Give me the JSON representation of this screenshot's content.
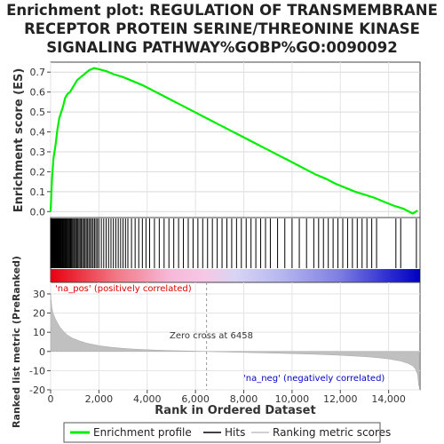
{
  "title_lines": [
    "Enrichment plot: REGULATION OF TRANSMEMBRANE",
    "RECEPTOR PROTEIN SERINE/THREONINE KINASE",
    "SIGNALING PATHWAY%GOBP%GO:0090092"
  ],
  "chart_data": {
    "type": "line",
    "title": "Enrichment plot: REGULATION OF TRANSMEMBRANE RECEPTOR PROTEIN SERINE/THREONINE KINASE SIGNALING PATHWAY%GOBP%GO:0090092",
    "xlabel": "Rank in Ordered Dataset",
    "xlim": [
      0,
      15300
    ],
    "x_ticks": [
      0,
      2000,
      4000,
      6000,
      8000,
      10000,
      12000,
      14000
    ],
    "x_tick_labels": [
      "0",
      "2,000",
      "4,000",
      "6,000",
      "8,000",
      "10,000",
      "12,000",
      "14,000"
    ],
    "top_panel": {
      "ylabel": "Enrichment score (ES)",
      "ylim": [
        -0.03,
        0.75
      ],
      "y_ticks": [
        0.0,
        0.1,
        0.2,
        0.3,
        0.4,
        0.5,
        0.6,
        0.7
      ],
      "y_tick_labels": [
        "0.0",
        "0.1",
        "0.2",
        "0.3",
        "0.4",
        "0.5",
        "0.6",
        "0.7"
      ],
      "grid": true,
      "series": [
        {
          "name": "Enrichment profile",
          "color": "#00ee00",
          "x": [
            0,
            60,
            120,
            200,
            280,
            360,
            440,
            520,
            600,
            700,
            800,
            900,
            1000,
            1100,
            1200,
            1300,
            1400,
            1500,
            1600,
            1700,
            1800,
            2000,
            2300,
            2600,
            3000,
            3400,
            3800,
            4200,
            4600,
            5000,
            5400,
            5800,
            6200,
            6600,
            7000,
            7400,
            7800,
            8200,
            8600,
            9000,
            9400,
            9800,
            10200,
            10600,
            11000,
            11400,
            11800,
            12200,
            12600,
            13000,
            13400,
            13800,
            14200,
            14600,
            15000,
            15200
          ],
          "y": [
            0.0,
            0.17,
            0.27,
            0.33,
            0.41,
            0.47,
            0.5,
            0.53,
            0.57,
            0.59,
            0.6,
            0.62,
            0.64,
            0.66,
            0.67,
            0.68,
            0.69,
            0.7,
            0.71,
            0.715,
            0.72,
            0.715,
            0.705,
            0.69,
            0.675,
            0.655,
            0.635,
            0.61,
            0.585,
            0.56,
            0.535,
            0.51,
            0.485,
            0.46,
            0.435,
            0.41,
            0.385,
            0.36,
            0.335,
            0.31,
            0.285,
            0.26,
            0.235,
            0.21,
            0.185,
            0.165,
            0.14,
            0.12,
            0.1,
            0.085,
            0.07,
            0.05,
            0.03,
            0.015,
            -0.01,
            0.005
          ]
        }
      ]
    },
    "hits_panel": {
      "hit_ranks": [
        5,
        12,
        20,
        28,
        35,
        44,
        52,
        61,
        70,
        80,
        90,
        101,
        113,
        125,
        138,
        152,
        167,
        183,
        200,
        218,
        237,
        257,
        278,
        300,
        323,
        347,
        372,
        398,
        425,
        453,
        482,
        512,
        543,
        575,
        608,
        642,
        677,
        713,
        750,
        788,
        827,
        867,
        908,
        950,
        993,
        1037,
        1082,
        1128,
        1175,
        1223,
        1272,
        1322,
        1373,
        1425,
        1478,
        1532,
        1587,
        1643,
        1700,
        1758,
        1817,
        1877,
        1938,
        2000,
        2100,
        2200,
        2300,
        2400,
        2500,
        2600,
        2700,
        2800,
        2900,
        3000,
        3100,
        3200,
        3350,
        3500,
        3650,
        3800,
        3950,
        4100,
        4300,
        4500,
        4700,
        4900,
        5100,
        5300,
        5500,
        5700,
        5900,
        6100,
        6300,
        6500,
        6700,
        6900,
        7100,
        7300,
        7500,
        7700,
        7900,
        8100,
        8300,
        8500,
        8700,
        8900,
        9100,
        9400,
        9700,
        10000,
        10300,
        10600,
        10900,
        11100,
        11300,
        11500,
        11700,
        11900,
        12100,
        12300,
        12500,
        12700,
        12900,
        13100,
        13300,
        13500,
        14300,
        14500,
        15150
      ]
    },
    "bottom_panel": {
      "ylabel": "Ranked list metric (PreRanked)",
      "ylim": [
        -20,
        36
      ],
      "y_ticks": [
        -20,
        -10,
        0,
        10,
        20,
        30
      ],
      "y_tick_labels": [
        "-20",
        "-10",
        "0",
        "10",
        "20",
        "30"
      ],
      "grid": true,
      "series": [
        {
          "name": "Ranking metric scores",
          "color": "#c0c0c0",
          "x": [
            0,
            20,
            50,
            100,
            200,
            300,
            400,
            500,
            700,
            900,
            1200,
            1500,
            2000,
            2500,
            3000,
            3500,
            4000,
            4500,
            5000,
            5500,
            6000,
            6458,
            7000,
            8000,
            9000,
            10000,
            11000,
            12000,
            13000,
            13500,
            14000,
            14500,
            14800,
            15000,
            15100,
            15200,
            15250
          ],
          "y": [
            30,
            27,
            23,
            20,
            17,
            14.5,
            12.5,
            11,
            8.5,
            7,
            5.5,
            4.3,
            3,
            2.2,
            1.6,
            1.2,
            0.9,
            0.65,
            0.45,
            0.3,
            0.15,
            0,
            -0.2,
            -0.5,
            -0.8,
            -1.1,
            -1.5,
            -2.0,
            -2.7,
            -3.2,
            -3.9,
            -5.0,
            -6.2,
            -7.5,
            -9,
            -12,
            -18
          ]
        }
      ],
      "zero_cross_rank": 6458,
      "annotations": [
        "Zero cross at 6458",
        "'na_pos' (positively correlated)",
        "'na_neg' (negatively correlated)"
      ]
    },
    "legend": {
      "placement": "bottom",
      "entries": [
        "Enrichment profile",
        "Hits",
        "Ranking metric scores"
      ]
    }
  }
}
